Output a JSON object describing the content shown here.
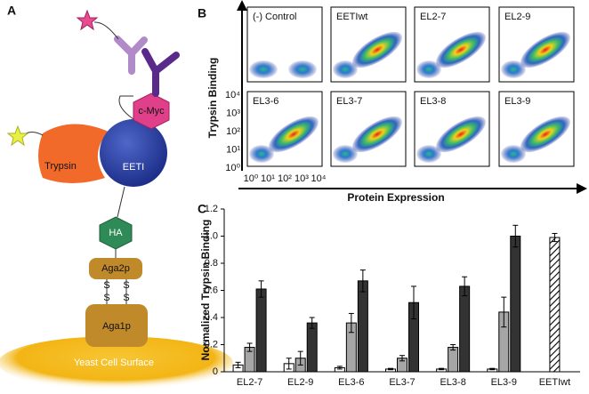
{
  "diagram": {
    "label": "A",
    "trypsin": "Trypsin",
    "eeti": "EETI",
    "cmyc": "c-Myc",
    "ha": "HA",
    "aga2p": "Aga2p",
    "bonds": [
      "S",
      "S",
      "S",
      "S"
    ],
    "aga1p": "Aga1p",
    "surface": "Yeast Cell Surface"
  },
  "flow": {
    "label": "B",
    "ylabel": "Trypsin Binding",
    "xlabel": "Protein Expression",
    "plots": [
      "(-) Control",
      "EETIwt",
      "EL2-7",
      "EL2-9",
      "EL3-6",
      "EL3-7",
      "EL3-8",
      "EL3-9"
    ],
    "yticks": [
      "10⁴",
      "10³",
      "10²",
      "10¹",
      "10⁰"
    ],
    "xticks": [
      "10⁰",
      "10¹",
      "10²",
      "10³",
      "10⁴"
    ]
  },
  "chart_data": {
    "type": "bar",
    "label": "C",
    "ylabel": "Normalized Trypsin Binding",
    "categories": [
      "EL2-7",
      "EL2-9",
      "EL3-6",
      "EL3-7",
      "EL3-8",
      "EL3-9",
      "EETIwt"
    ],
    "series": [
      {
        "color": "#ffffff",
        "values": [
          0.05,
          0.06,
          0.03,
          0.02,
          0.02,
          0.02,
          null
        ],
        "errors": [
          0.02,
          0.04,
          0.01,
          0.005,
          0.005,
          0.005,
          null
        ]
      },
      {
        "color": "#a6a6a6",
        "values": [
          0.18,
          0.1,
          0.36,
          0.1,
          0.18,
          0.44,
          null
        ],
        "errors": [
          0.03,
          0.05,
          0.07,
          0.02,
          0.02,
          0.11,
          null
        ]
      },
      {
        "color": "#333333",
        "values": [
          0.61,
          0.36,
          0.67,
          0.51,
          0.63,
          1.0,
          null
        ],
        "errors": [
          0.06,
          0.04,
          0.08,
          0.12,
          0.07,
          0.08,
          null
        ]
      },
      {
        "color": "#ffffff",
        "hatch": true,
        "values": [
          null,
          null,
          null,
          null,
          null,
          null,
          0.99
        ],
        "errors": [
          null,
          null,
          null,
          null,
          null,
          null,
          0.03
        ]
      }
    ],
    "ylim": [
      0,
      1.2
    ],
    "yticks": [
      0,
      0.2,
      0.4,
      0.6,
      0.8,
      {
        "value": 1,
        "label": "1.0"
      },
      1.2
    ]
  }
}
